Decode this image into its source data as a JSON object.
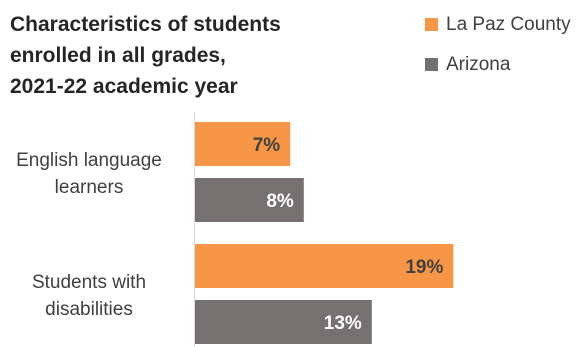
{
  "chart_data": {
    "type": "bar",
    "orientation": "horizontal",
    "title_lines": [
      "Characteristics  of students",
      "enrolled in all grades,",
      "2021-22 academic year"
    ],
    "categories": [
      [
        "English language",
        "learners"
      ],
      [
        "Students with",
        "disabilities"
      ]
    ],
    "series": [
      {
        "name": "La Paz County",
        "color": "#F79646",
        "label_color": "#404040",
        "values": [
          7,
          19
        ],
        "labels": [
          "7%",
          "19%"
        ]
      },
      {
        "name": "Arizona",
        "color": "#767171",
        "label_color": "#ffffff",
        "values": [
          8,
          13
        ],
        "labels": [
          "8%",
          "13%"
        ]
      }
    ],
    "xlim": [
      0,
      24
    ],
    "legend_position": "top-right",
    "grid": false,
    "axis_color": "#D9D9D9"
  }
}
